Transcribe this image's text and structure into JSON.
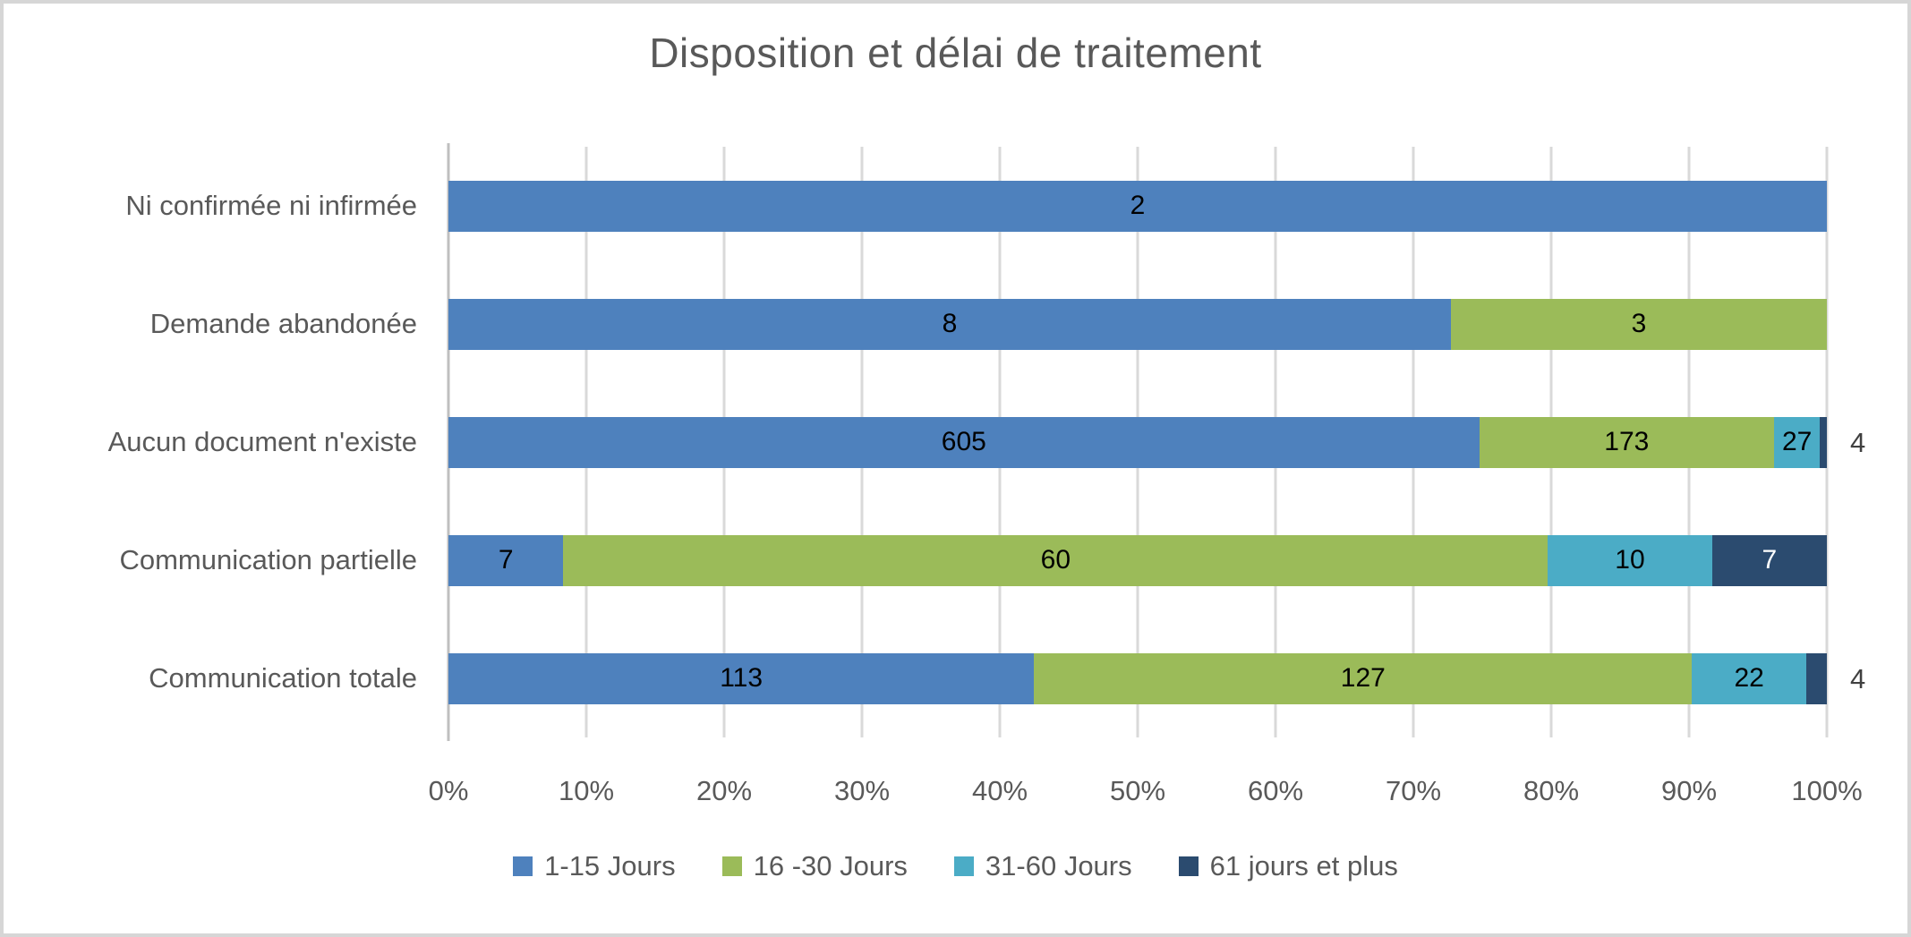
{
  "chart": {
    "title": "Disposition et délai de traitement"
  },
  "chart_data": {
    "type": "bar",
    "orientation": "horizontal",
    "stacked": "100%",
    "title": "Disposition et délai de traitement",
    "categories": [
      "Ni confirmée ni infirmée",
      "Demande abandonée",
      "Aucun document n'existe",
      "Communication partielle",
      "Communication totale"
    ],
    "series": [
      {
        "name": "1-15 Jours",
        "color": "#4E81BD",
        "values": [
          2,
          8,
          605,
          7,
          113
        ]
      },
      {
        "name": "16 -30 Jours",
        "color": "#9BBB59",
        "values": [
          0,
          3,
          173,
          60,
          127
        ]
      },
      {
        "name": "31-60 Jours",
        "color": "#4BACC6",
        "values": [
          0,
          0,
          27,
          10,
          22
        ]
      },
      {
        "name": "61 jours et plus",
        "color": "#2B4B6F",
        "values": [
          0,
          0,
          4,
          7,
          4
        ]
      }
    ],
    "x_ticks": [
      "0%",
      "10%",
      "20%",
      "30%",
      "40%",
      "50%",
      "60%",
      "70%",
      "80%",
      "90%",
      "100%"
    ],
    "xlim": [
      0,
      1
    ],
    "grid": true,
    "legend_position": "bottom",
    "colors": {
      "gridline": "#D9D9D9",
      "axis_line": "#BFBFBF",
      "text": "#595959",
      "data_label_inside": "#000000",
      "data_label_on_dark": "#ffffff",
      "data_label_outside": "#404040"
    }
  }
}
